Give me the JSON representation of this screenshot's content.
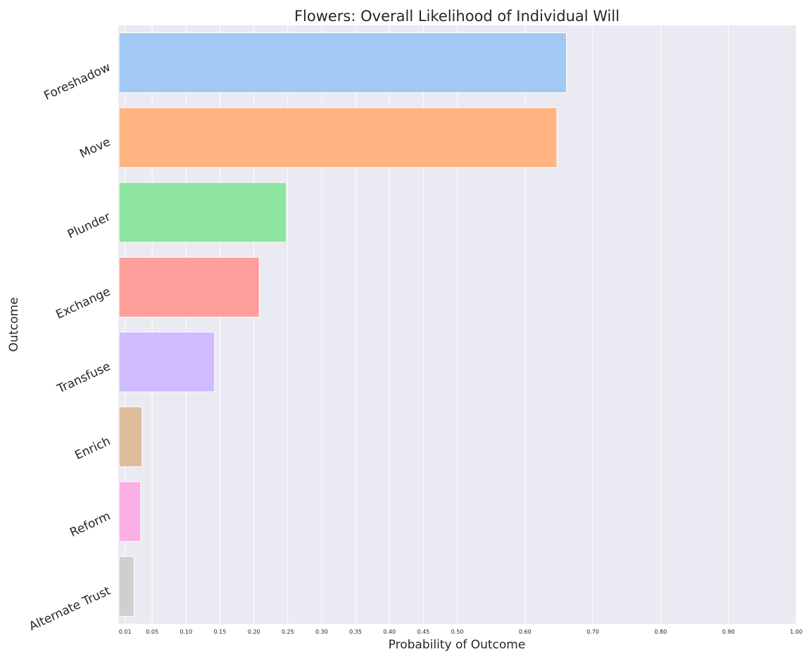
{
  "chart_data": {
    "type": "bar",
    "orientation": "horizontal",
    "title": "Flowers: Overall Likelihood of Individual Will",
    "xlabel": "Probability of Outcome",
    "ylabel": "Outcome",
    "xlim": [
      0,
      1
    ],
    "xticks": [
      0.01,
      0.05,
      0.1,
      0.15,
      0.2,
      0.25,
      0.3,
      0.35,
      0.4,
      0.45,
      0.5,
      0.6,
      0.7,
      0.8,
      0.9,
      1.0
    ],
    "xtick_labels": [
      "0.01",
      "0.05",
      "0.10",
      "0.15",
      "0.20",
      "0.25",
      "0.30",
      "0.35",
      "0.40",
      "0.45",
      "0.50",
      "0.60",
      "0.70",
      "0.80",
      "0.90",
      "1.00"
    ],
    "categories": [
      "Foreshadow",
      "Move",
      "Plunder",
      "Exchange",
      "Transfuse",
      "Enrich",
      "Reform",
      "Alternate Trust"
    ],
    "values": [
      0.661,
      0.647,
      0.248,
      0.208,
      0.142,
      0.035,
      0.033,
      0.023
    ],
    "colors": [
      "#a1c9f4",
      "#ffb482",
      "#8de5a1",
      "#ff9f9b",
      "#d0bbff",
      "#debb9b",
      "#fab0e4",
      "#cfcfcf"
    ],
    "grid": true,
    "background": "#eaeaf2"
  }
}
